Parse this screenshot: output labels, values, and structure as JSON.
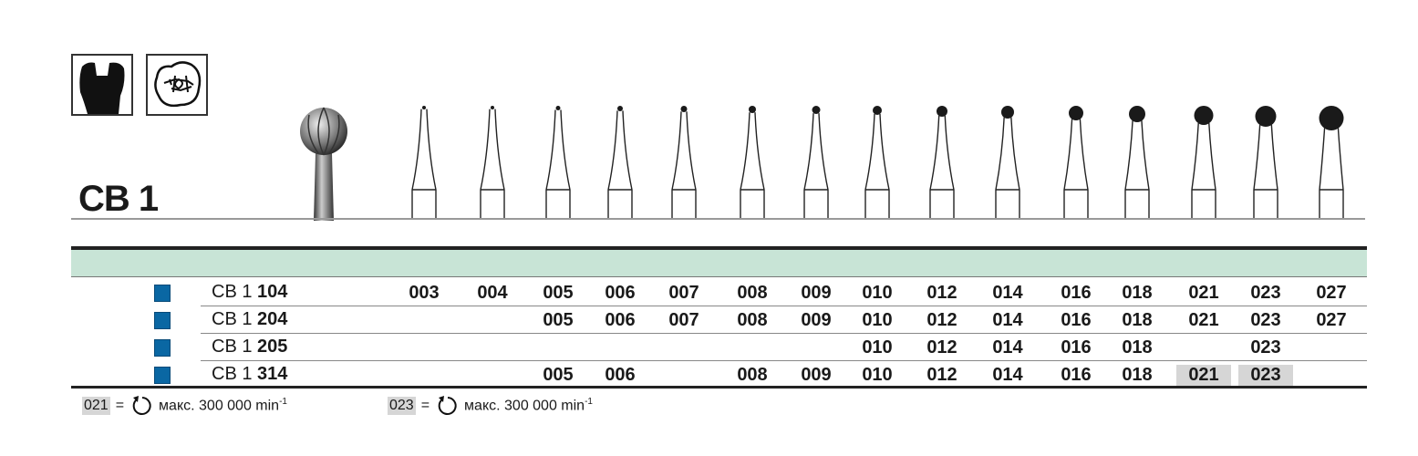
{
  "product": {
    "title": "CB 1"
  },
  "icons": [
    "crown-cavity-icon",
    "fissure-tooth-icon"
  ],
  "sizes": [
    "003",
    "004",
    "005",
    "006",
    "007",
    "008",
    "009",
    "010",
    "012",
    "014",
    "016",
    "018",
    "021",
    "023",
    "027"
  ],
  "rows": [
    {
      "prefix": "CB 1",
      "number": "104",
      "sizes": [
        "003",
        "004",
        "005",
        "006",
        "007",
        "008",
        "009",
        "010",
        "012",
        "014",
        "016",
        "018",
        "021",
        "023",
        "027"
      ],
      "highlighted": []
    },
    {
      "prefix": "CB 1",
      "number": "204",
      "sizes": [
        "005",
        "006",
        "007",
        "008",
        "009",
        "010",
        "012",
        "014",
        "016",
        "018",
        "021",
        "023",
        "027"
      ],
      "highlighted": []
    },
    {
      "prefix": "CB 1",
      "number": "205",
      "sizes": [
        "010",
        "012",
        "014",
        "016",
        "018",
        "023"
      ],
      "highlighted": []
    },
    {
      "prefix": "CB 1",
      "number": "314",
      "sizes": [
        "005",
        "006",
        "008",
        "009",
        "010",
        "012",
        "014",
        "016",
        "018",
        "021",
        "023"
      ],
      "highlighted": [
        "021",
        "023"
      ]
    }
  ],
  "footnotes": [
    {
      "size": "021",
      "equals": "=",
      "text": "макс. 300 000 min",
      "exp": "-1"
    },
    {
      "size": "023",
      "equals": "=",
      "text": "макс. 300 000 min",
      "exp": "-1"
    }
  ],
  "colors": {
    "band": "#c8e4d6",
    "square": "#0a67a3",
    "highlight": "#d6d6d6"
  }
}
